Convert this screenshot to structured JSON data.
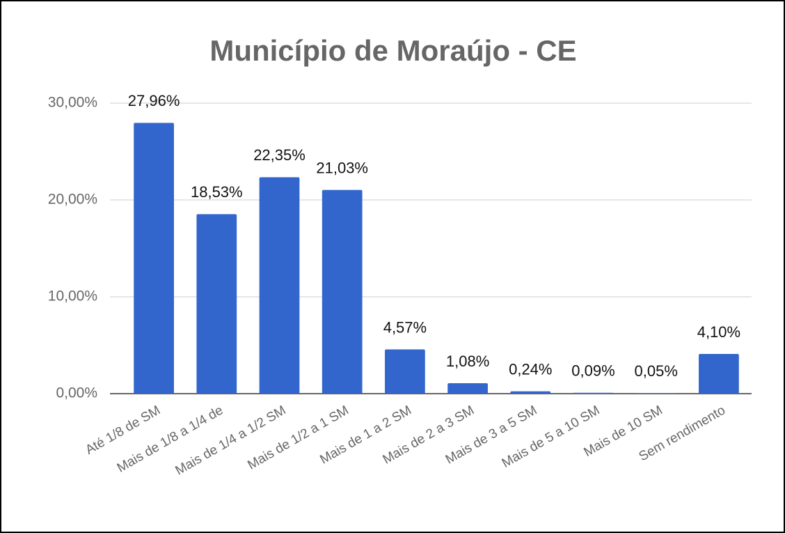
{
  "chart_data": {
    "type": "bar",
    "title": "Município de Moraújo - CE",
    "categories": [
      "Até 1/8 de SM",
      "Mais de 1/8 a 1/4 de",
      "Mais de 1/4 a 1/2 SM",
      "Mais de 1/2 a 1 SM",
      "Mais de 1 a 2 SM",
      "Mais de 2 a 3 SM",
      "Mais de 3 a 5 SM",
      "Mais de 5 a 10 SM",
      "Mais de 10 SM",
      "Sem rendimento"
    ],
    "values": [
      27.96,
      18.53,
      22.35,
      21.03,
      4.57,
      1.08,
      0.24,
      0.09,
      0.05,
      4.1
    ],
    "value_labels": [
      "27,96%",
      "18,53%",
      "22,35%",
      "21,03%",
      "4,57%",
      "1,08%",
      "0,24%",
      "0,09%",
      "0,05%",
      "4,10%"
    ],
    "color": "#3366cc",
    "ylim": [
      0,
      30
    ],
    "yticks": [
      {
        "value": 0,
        "label": "0,00%"
      },
      {
        "value": 10,
        "label": "10,00%"
      },
      {
        "value": 20,
        "label": "20,00%"
      },
      {
        "value": 30,
        "label": "30,00%"
      }
    ],
    "grid": true
  }
}
